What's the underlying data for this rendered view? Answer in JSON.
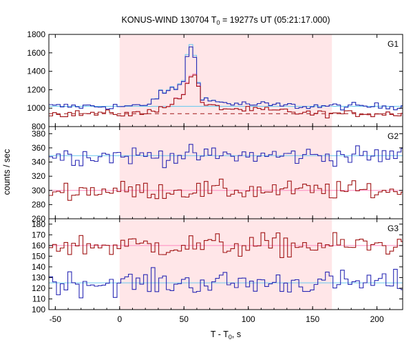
{
  "chart_data": {
    "type": "line",
    "title_prefix": "KONUS-WIND 130704 T",
    "title_sub": "0",
    "title_suffix": " = 19277s UT (05:21:17.000)",
    "xlabel_prefix": "T - T",
    "xlabel_sub": "0",
    "xlabel_suffix": ", s",
    "ylabel": "counts / sec",
    "xlim": [
      -55,
      220
    ],
    "xticks": [
      -50,
      0,
      50,
      100,
      150,
      200
    ],
    "highlight": {
      "x0": 0,
      "x1": 165,
      "color": "#ffe6e8"
    },
    "colors": {
      "blue": "#2828b4",
      "red": "#a01414",
      "lightblue": "#66c8ee",
      "pink": "#ff88c0",
      "frame": "#000000"
    },
    "panels": [
      {
        "label": "G1",
        "ylim": [
          800,
          1800
        ],
        "yticks": [
          800,
          1000,
          1200,
          1400,
          1600,
          1800
        ],
        "blue_bg": 1020,
        "red_bg": 940,
        "blue_range": [
          -55,
          220
        ],
        "red_range": [
          -55,
          220
        ],
        "red_dashed": true,
        "peak_blue": [
          [
            20,
            0
          ],
          [
            25,
            60
          ],
          [
            30,
            120
          ],
          [
            35,
            150
          ],
          [
            40,
            180
          ],
          [
            45,
            200
          ],
          [
            50,
            300
          ],
          [
            53,
            580
          ],
          [
            55,
            640
          ],
          [
            58,
            560
          ],
          [
            60,
            400
          ],
          [
            62,
            200
          ],
          [
            64,
            120
          ],
          [
            66,
            80
          ],
          [
            70,
            60
          ],
          [
            80,
            40
          ],
          [
            90,
            30
          ],
          [
            100,
            20
          ],
          [
            110,
            20
          ],
          [
            120,
            10
          ],
          [
            130,
            10
          ],
          [
            140,
            0
          ]
        ],
        "peak_red": [
          [
            20,
            0
          ],
          [
            30,
            60
          ],
          [
            40,
            110
          ],
          [
            50,
            200
          ],
          [
            53,
            360
          ],
          [
            56,
            440
          ],
          [
            59,
            420
          ],
          [
            61,
            280
          ],
          [
            63,
            150
          ],
          [
            66,
            100
          ],
          [
            70,
            80
          ],
          [
            80,
            60
          ],
          [
            90,
            50
          ],
          [
            100,
            40
          ],
          [
            110,
            40
          ],
          [
            120,
            30
          ],
          [
            130,
            30
          ],
          [
            140,
            10
          ],
          [
            150,
            0
          ]
        ],
        "noise": 20
      },
      {
        "label": "G2",
        "ylim": [
          260,
          390
        ],
        "yticks": [
          260,
          280,
          300,
          320,
          340,
          360,
          380
        ],
        "blue_bg": 349,
        "red_bg": 300,
        "blue_range": [
          -55,
          220
        ],
        "red_range": [
          -55,
          220
        ],
        "red_dashed": false,
        "peak_blue": [],
        "peak_red": [],
        "noise": 7
      },
      {
        "label": "G3",
        "ylim": [
          100,
          185
        ],
        "yticks": [
          100,
          110,
          120,
          130,
          140,
          150,
          160,
          170,
          180
        ],
        "blue_bg": 125,
        "red_bg": 160,
        "blue_range": [
          -55,
          220
        ],
        "red_range": [
          -55,
          220
        ],
        "red_dashed": false,
        "peak_blue": [],
        "peak_red": [],
        "noise": 6
      }
    ],
    "bin_width": 2.944
  }
}
